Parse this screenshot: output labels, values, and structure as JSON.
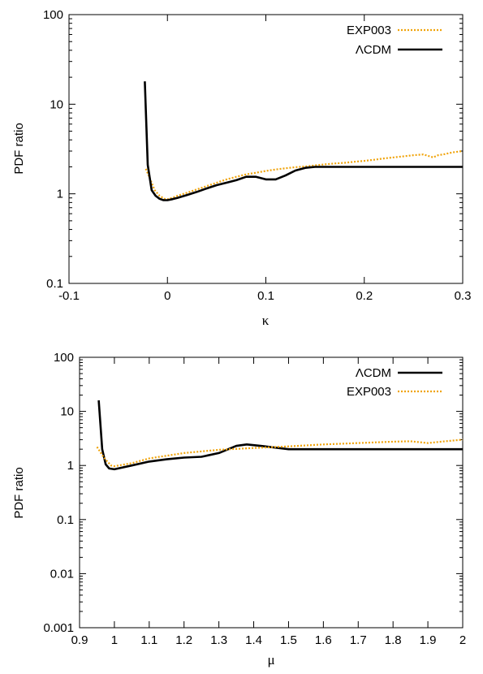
{
  "chart_data": [
    {
      "type": "line",
      "xlabel": "κ",
      "ylabel": "PDF ratio",
      "xlim": [
        -0.1,
        0.3
      ],
      "ylim": [
        0.1,
        100
      ],
      "yscale": "log",
      "xticks": [
        "-0.1",
        "0",
        "0.1",
        "0.2",
        "0.3"
      ],
      "yticks": [
        "0.1",
        "1",
        "10",
        "100"
      ],
      "legend_position": "top-right",
      "series": [
        {
          "name": "EXP003",
          "color": "#f0a30a",
          "style": "dotted",
          "x": [
            -0.022,
            -0.018,
            -0.013,
            -0.008,
            -0.003,
            0.0,
            0.005,
            0.01,
            0.02,
            0.03,
            0.04,
            0.05,
            0.06,
            0.07,
            0.08,
            0.09,
            0.1,
            0.11,
            0.12,
            0.13,
            0.14,
            0.15,
            0.16,
            0.17,
            0.18,
            0.19,
            0.2,
            0.21,
            0.22,
            0.23,
            0.24,
            0.25,
            0.26,
            0.265,
            0.27,
            0.275,
            0.28,
            0.29,
            0.3
          ],
          "y": [
            1.9,
            1.5,
            1.1,
            0.95,
            0.88,
            0.87,
            0.9,
            0.95,
            1.03,
            1.12,
            1.22,
            1.33,
            1.45,
            1.55,
            1.65,
            1.72,
            1.8,
            1.87,
            1.93,
            1.98,
            2.02,
            2.08,
            2.13,
            2.18,
            2.22,
            2.28,
            2.33,
            2.4,
            2.48,
            2.55,
            2.62,
            2.7,
            2.75,
            2.65,
            2.55,
            2.7,
            2.75,
            2.9,
            3.0
          ]
        },
        {
          "name": "ΛCDM",
          "color": "#000000",
          "style": "solid",
          "x": [
            -0.023,
            -0.02,
            -0.016,
            -0.012,
            -0.008,
            -0.004,
            0.0,
            0.005,
            0.01,
            0.02,
            0.03,
            0.04,
            0.05,
            0.06,
            0.07,
            0.08,
            0.09,
            0.1,
            0.11,
            0.12,
            0.13,
            0.14,
            0.15,
            0.2,
            0.25,
            0.3
          ],
          "y": [
            18,
            2.1,
            1.1,
            0.95,
            0.88,
            0.85,
            0.85,
            0.87,
            0.9,
            0.97,
            1.05,
            1.15,
            1.25,
            1.33,
            1.42,
            1.55,
            1.55,
            1.45,
            1.45,
            1.6,
            1.82,
            1.95,
            2.0,
            2.0,
            2.0,
            2.0
          ]
        }
      ]
    },
    {
      "type": "line",
      "xlabel": "μ",
      "ylabel": "PDF ratio",
      "xlim": [
        0.9,
        2.0
      ],
      "ylim": [
        0.001,
        100
      ],
      "yscale": "log",
      "xticks": [
        "0.9",
        "1",
        "1.1",
        "1.2",
        "1.3",
        "1.4",
        "1.5",
        "1.6",
        "1.7",
        "1.8",
        "1.9",
        "2"
      ],
      "yticks": [
        "0.001",
        "0.01",
        "0.1",
        "1",
        "10",
        "100"
      ],
      "legend_position": "top-right",
      "series": [
        {
          "name": "ΛCDM",
          "color": "#000000",
          "style": "solid",
          "x": [
            0.955,
            0.965,
            0.975,
            0.985,
            1.0,
            1.05,
            1.1,
            1.15,
            1.2,
            1.25,
            1.3,
            1.35,
            1.38,
            1.42,
            1.5,
            1.6,
            1.8,
            2.0
          ],
          "y": [
            16,
            2.0,
            1.05,
            0.88,
            0.85,
            1.0,
            1.18,
            1.3,
            1.4,
            1.45,
            1.7,
            2.3,
            2.45,
            2.3,
            2.0,
            2.0,
            2.0,
            2.0
          ]
        },
        {
          "name": "EXP003",
          "color": "#f0a30a",
          "style": "dotted",
          "x": [
            0.95,
            0.97,
            0.99,
            1.0,
            1.05,
            1.1,
            1.2,
            1.3,
            1.4,
            1.5,
            1.6,
            1.7,
            1.8,
            1.85,
            1.9,
            1.95,
            2.0
          ],
          "y": [
            2.2,
            1.4,
            1.0,
            0.97,
            1.1,
            1.35,
            1.7,
            1.95,
            2.1,
            2.25,
            2.45,
            2.6,
            2.75,
            2.8,
            2.6,
            2.8,
            3.0
          ]
        }
      ]
    }
  ]
}
